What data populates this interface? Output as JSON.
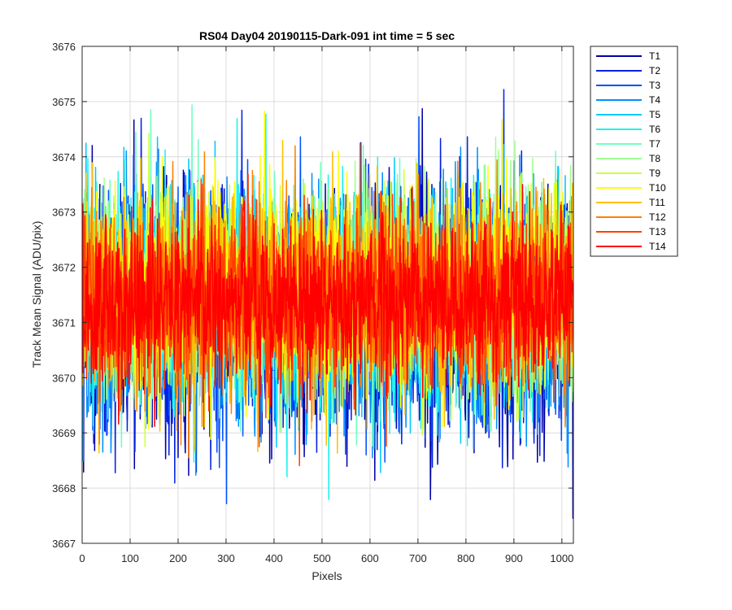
{
  "chart_data": {
    "type": "line",
    "title": "RS04 Day04 20190115-Dark-091 int time = 5 sec",
    "xlabel": "Pixels",
    "ylabel": "Track Mean Signal (ADU/pix)",
    "xlim": [
      0,
      1024
    ],
    "ylim": [
      3667,
      3676
    ],
    "xticks": [
      0,
      100,
      200,
      300,
      400,
      500,
      600,
      700,
      800,
      900,
      1000
    ],
    "yticks": [
      3667,
      3668,
      3669,
      3670,
      3671,
      3672,
      3673,
      3674,
      3675,
      3676
    ],
    "grid": true,
    "legend_position": "outside-top-right",
    "sampling": "noise series drawn per pixel 1..1024 with approx. mean and std per track; exact values not legible",
    "series": [
      {
        "name": "T1",
        "color": "#0000a8",
        "mean": 3671.2,
        "std": 1.15
      },
      {
        "name": "T2",
        "color": "#0022e0",
        "mean": 3671.2,
        "std": 1.1
      },
      {
        "name": "T3",
        "color": "#0050ff",
        "mean": 3671.3,
        "std": 1.05
      },
      {
        "name": "T4",
        "color": "#0090ff",
        "mean": 3671.3,
        "std": 1.05
      },
      {
        "name": "T5",
        "color": "#00c8ff",
        "mean": 3671.4,
        "std": 1.0
      },
      {
        "name": "T6",
        "color": "#20f0f0",
        "mean": 3671.4,
        "std": 1.0
      },
      {
        "name": "T7",
        "color": "#70ffc0",
        "mean": 3671.5,
        "std": 0.95
      },
      {
        "name": "T8",
        "color": "#a0ff90",
        "mean": 3671.5,
        "std": 0.95
      },
      {
        "name": "T9",
        "color": "#d0ff40",
        "mean": 3671.6,
        "std": 0.9
      },
      {
        "name": "T10",
        "color": "#ffff00",
        "mean": 3671.6,
        "std": 0.9
      },
      {
        "name": "T11",
        "color": "#ffc000",
        "mean": 3671.5,
        "std": 0.9
      },
      {
        "name": "T12",
        "color": "#ff8000",
        "mean": 3671.4,
        "std": 0.85
      },
      {
        "name": "T13",
        "color": "#ff4000",
        "mean": 3671.4,
        "std": 0.8
      },
      {
        "name": "T14",
        "color": "#ff0000",
        "mean": 3671.4,
        "std": 0.75
      }
    ]
  }
}
